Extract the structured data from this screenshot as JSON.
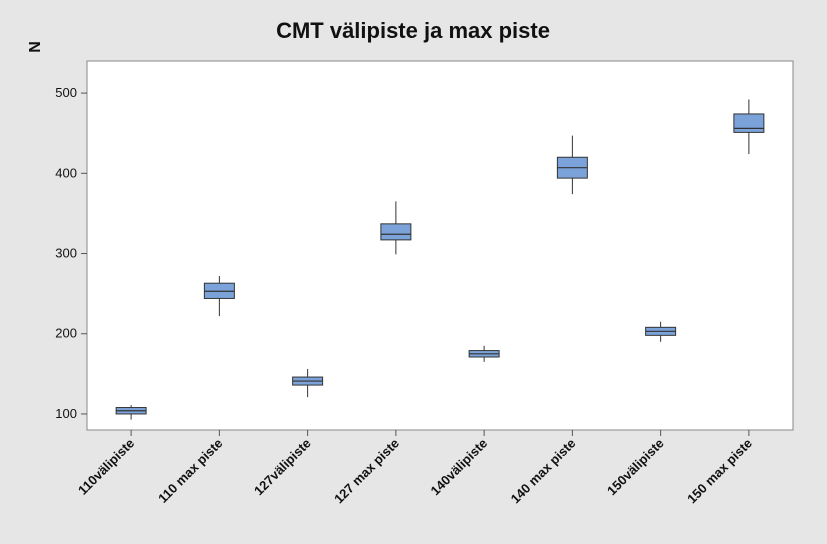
{
  "chart_data": {
    "type": "boxplot",
    "title": "CMT välipiste ja max piste",
    "ylabel": "N",
    "xlabel": "",
    "ylim": [
      80,
      540
    ],
    "yticks": [
      100,
      200,
      300,
      400,
      500
    ],
    "grid": false,
    "box_color": "#7ba3d9",
    "categories": [
      "110välipiste",
      "110 max piste",
      "127välipiste",
      "127 max piste",
      "140välipiste",
      "140 max piste",
      "150välipiste",
      "150 max piste"
    ],
    "boxes": [
      {
        "min": 93,
        "q1": 100,
        "median": 104,
        "q3": 108,
        "max": 111
      },
      {
        "min": 222,
        "q1": 244,
        "median": 253,
        "q3": 263,
        "max": 272
      },
      {
        "min": 121,
        "q1": 136,
        "median": 141,
        "q3": 146,
        "max": 156
      },
      {
        "min": 299,
        "q1": 317,
        "median": 324,
        "q3": 337,
        "max": 365
      },
      {
        "min": 165,
        "q1": 171,
        "median": 175,
        "q3": 179,
        "max": 185
      },
      {
        "min": 374,
        "q1": 394,
        "median": 407,
        "q3": 420,
        "max": 447
      },
      {
        "min": 190,
        "q1": 198,
        "median": 203,
        "q3": 208,
        "max": 215
      },
      {
        "min": 424,
        "q1": 451,
        "median": 456,
        "q3": 474,
        "max": 492
      }
    ]
  }
}
